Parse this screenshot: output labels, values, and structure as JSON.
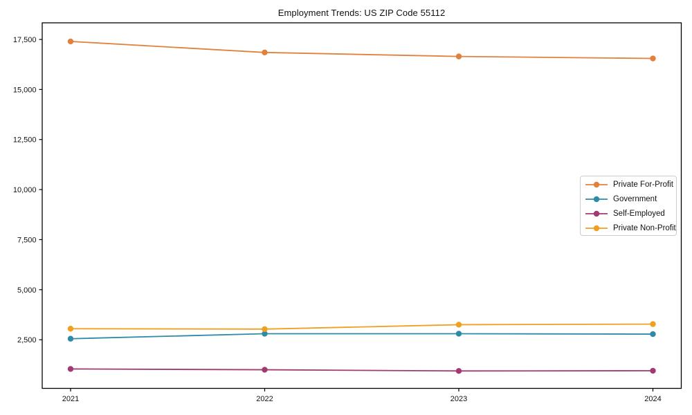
{
  "chart_data": {
    "type": "line",
    "title": "Employment Trends: US ZIP Code 55112",
    "xlabel": "",
    "ylabel": "",
    "grid": false,
    "legend_position": "right-middle",
    "marker": "circle",
    "categories": [
      "2021",
      "2022",
      "2023",
      "2024"
    ],
    "series": [
      {
        "name": "Private For-Profit",
        "color": "#E2813D",
        "values": [
          17400,
          16850,
          16650,
          16550
        ]
      },
      {
        "name": "Government",
        "color": "#2E8BA7",
        "values": [
          2550,
          2800,
          2800,
          2780
        ]
      },
      {
        "name": "Self-Employed",
        "color": "#A13A70",
        "values": [
          1040,
          1000,
          940,
          950
        ]
      },
      {
        "name": "Private Non-Profit",
        "color": "#EFA021",
        "values": [
          3050,
          3030,
          3250,
          3280
        ]
      }
    ],
    "ylim": [
      70,
      18330
    ],
    "yticks": [
      2500,
      5000,
      7500,
      10000,
      12500,
      15000,
      17500
    ],
    "ytick_labels": [
      "2,500",
      "5,000",
      "7,500",
      "10,000",
      "12,500",
      "15,000",
      "17,500"
    ]
  }
}
